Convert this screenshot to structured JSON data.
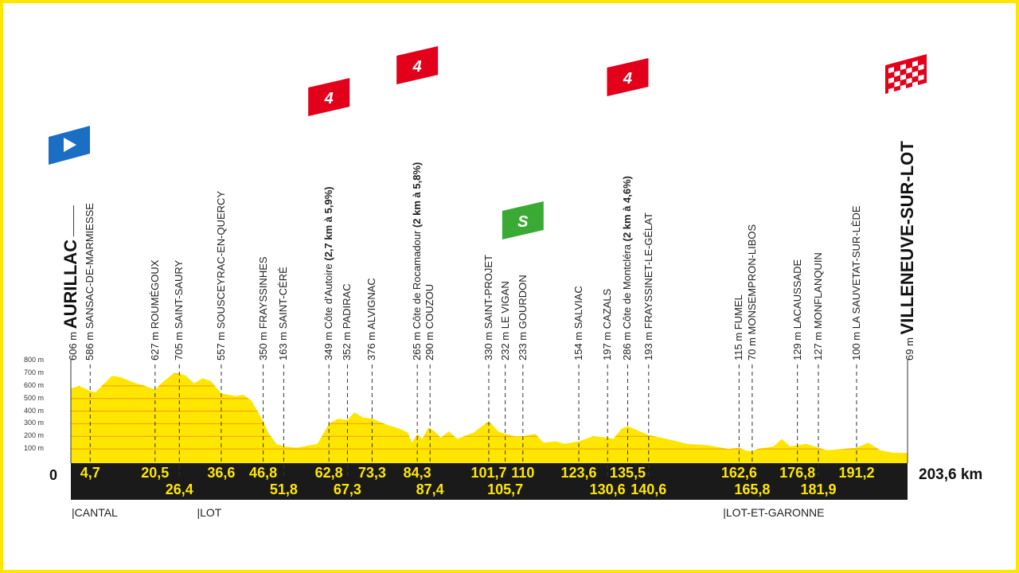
{
  "colors": {
    "profile": "#ffe600",
    "band": "#1a1a1a",
    "km_text": "#ffe600",
    "border": "#ffe600",
    "climb": "#e2001a",
    "sprint": "#3aaa35",
    "start": "#1a6fc4"
  },
  "chart_data": {
    "type": "area",
    "xlim": [
      0,
      203.6
    ],
    "ylim": [
      0,
      800
    ],
    "y_ticks": [
      "100 m",
      "200 m",
      "300 m",
      "400 m",
      "500 m",
      "600 m",
      "700 m",
      "800 m"
    ],
    "y_tick_values": [
      100,
      200,
      300,
      400,
      500,
      600,
      700,
      800
    ],
    "start_label": "0",
    "total_label": "203,6 km",
    "profile": [
      [
        0,
        580
      ],
      [
        2,
        600
      ],
      [
        4.7,
        560
      ],
      [
        6,
        550
      ],
      [
        10,
        680
      ],
      [
        12,
        670
      ],
      [
        15,
        630
      ],
      [
        18,
        600
      ],
      [
        20.5,
        570
      ],
      [
        22,
        620
      ],
      [
        25,
        700
      ],
      [
        26.4,
        700
      ],
      [
        28,
        680
      ],
      [
        30,
        620
      ],
      [
        32,
        660
      ],
      [
        34,
        640
      ],
      [
        36.6,
        540
      ],
      [
        40,
        520
      ],
      [
        42,
        530
      ],
      [
        44,
        480
      ],
      [
        46.8,
        320
      ],
      [
        48,
        230
      ],
      [
        50,
        140
      ],
      [
        51.8,
        120
      ],
      [
        55,
        110
      ],
      [
        60,
        140
      ],
      [
        62.8,
        300
      ],
      [
        65,
        340
      ],
      [
        67.3,
        330
      ],
      [
        69,
        390
      ],
      [
        71,
        350
      ],
      [
        73.3,
        340
      ],
      [
        77,
        290
      ],
      [
        80,
        260
      ],
      [
        82,
        230
      ],
      [
        83,
        150
      ],
      [
        84.3,
        220
      ],
      [
        85.5,
        180
      ],
      [
        87,
        270
      ],
      [
        88.5,
        240
      ],
      [
        90,
        190
      ],
      [
        92,
        240
      ],
      [
        94,
        180
      ],
      [
        98,
        230
      ],
      [
        101.7,
        320
      ],
      [
        104,
        240
      ],
      [
        105.7,
        220
      ],
      [
        108,
        200
      ],
      [
        110,
        200
      ],
      [
        113,
        220
      ],
      [
        115,
        150
      ],
      [
        118,
        160
      ],
      [
        120,
        140
      ],
      [
        123.6,
        160
      ],
      [
        127,
        200
      ],
      [
        130.6,
        190
      ],
      [
        132,
        180
      ],
      [
        134,
        260
      ],
      [
        135.5,
        280
      ],
      [
        137,
        260
      ],
      [
        140.6,
        210
      ],
      [
        145,
        180
      ],
      [
        150,
        140
      ],
      [
        155,
        130
      ],
      [
        160,
        100
      ],
      [
        162.6,
        110
      ],
      [
        164,
        90
      ],
      [
        165.8,
        80
      ],
      [
        167,
        100
      ],
      [
        171,
        120
      ],
      [
        173,
        180
      ],
      [
        175,
        120
      ],
      [
        176.8,
        130
      ],
      [
        179,
        140
      ],
      [
        181.9,
        110
      ],
      [
        184,
        90
      ],
      [
        188,
        100
      ],
      [
        191.2,
        110
      ],
      [
        194,
        150
      ],
      [
        197,
        90
      ],
      [
        200,
        70
      ],
      [
        203.6,
        69
      ]
    ],
    "waypoints": [
      {
        "km": 0,
        "alt": "606 m",
        "name": "AURILLAC",
        "big": true
      },
      {
        "km": 4.7,
        "km_label": "4,7",
        "row": 1,
        "alt": "586 m",
        "name": "SANSAC-DE-MARMIESSE"
      },
      {
        "km": 20.5,
        "km_label": "20,5",
        "row": 1,
        "alt": "627 m",
        "name": "ROUMÉGOUX"
      },
      {
        "km": 26.4,
        "km_label": "26,4",
        "row": 2,
        "alt": "705 m",
        "name": "SAINT-SAURY"
      },
      {
        "km": 36.6,
        "km_label": "36,6",
        "row": 1,
        "alt": "557 m",
        "name": "SOUSCEYRAC-EN-QUERCY"
      },
      {
        "km": 46.8,
        "km_label": "46,8",
        "row": 1,
        "alt": "350 m",
        "name": "FRAYSSINHES"
      },
      {
        "km": 51.8,
        "km_label": "51,8",
        "row": 2,
        "alt": "163 m",
        "name": "SAINT-CÉRÉ"
      },
      {
        "km": 62.8,
        "km_label": "62,8",
        "row": 1,
        "alt": "349 m",
        "name": "Côte d'Autoire",
        "detail": "(2,7 km à 5,9%)",
        "category": "4"
      },
      {
        "km": 67.3,
        "km_label": "67,3",
        "row": 2,
        "alt": "352 m",
        "name": "PADIRAC"
      },
      {
        "km": 73.3,
        "km_label": "73,3",
        "row": 1,
        "alt": "376 m",
        "name": "ALVIGNAC"
      },
      {
        "km": 84.3,
        "km_label": "84,3",
        "row": 1,
        "alt": "265 m",
        "name": "Côte de Rocamadour",
        "detail": "(2 km à 5,8%)",
        "category": "4"
      },
      {
        "km": 87.4,
        "km_label": "87,4",
        "row": 2,
        "alt": "290 m",
        "name": "COUZOU"
      },
      {
        "km": 101.7,
        "km_label": "101,7",
        "row": 1,
        "alt": "330 m",
        "name": "SAINT-PROJET"
      },
      {
        "km": 105.7,
        "km_label": "105,7",
        "row": 2,
        "alt": "232 m",
        "name": "LE VIGAN"
      },
      {
        "km": 110,
        "km_label": "110",
        "row": 1,
        "alt": "233 m",
        "name": "GOURDON",
        "sprint": "S"
      },
      {
        "km": 123.6,
        "km_label": "123,6",
        "row": 1,
        "alt": "154 m",
        "name": "SALVIAC"
      },
      {
        "km": 130.6,
        "km_label": "130,6",
        "row": 2,
        "alt": "197 m",
        "name": "CAZALS"
      },
      {
        "km": 135.5,
        "km_label": "135,5",
        "row": 1,
        "alt": "286 m",
        "name": "Côte de Montcléra",
        "detail": "(2 km à 4,6%)",
        "category": "4"
      },
      {
        "km": 140.6,
        "km_label": "140,6",
        "row": 2,
        "alt": "193 m",
        "name": "FRAYSSINET-LE-GÉLAT"
      },
      {
        "km": 162.6,
        "km_label": "162,6",
        "row": 1,
        "alt": "115 m",
        "name": "FUMEL"
      },
      {
        "km": 165.8,
        "km_label": "165,8",
        "row": 2,
        "alt": "70 m",
        "name": "MONSEMPRON-LIBOS"
      },
      {
        "km": 176.8,
        "km_label": "176,8",
        "row": 1,
        "alt": "129 m",
        "name": "LACAUSSADE"
      },
      {
        "km": 181.9,
        "km_label": "181,9",
        "row": 2,
        "alt": "127 m",
        "name": "MONFLANQUIN"
      },
      {
        "km": 191.2,
        "km_label": "191,2",
        "row": 1,
        "alt": "100 m",
        "name": "LA SAUVETAT-SUR-LÈDE"
      },
      {
        "km": 203.6,
        "alt": "69 m",
        "name": "VILLENEUVE-SUR-LOT",
        "big": true
      }
    ],
    "regions": [
      {
        "km": 0,
        "label": "|CANTAL"
      },
      {
        "km": 30.5,
        "label": "|LOT"
      },
      {
        "km": 158.5,
        "label": "|LOT-ET-GARONNE"
      }
    ]
  }
}
